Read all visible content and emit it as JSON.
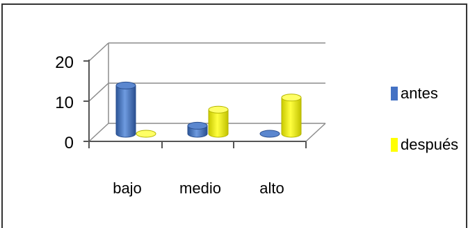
{
  "chart_data": {
    "type": "bar",
    "categories": [
      "bajo",
      "medio",
      "alto"
    ],
    "series": [
      {
        "name": "antes",
        "values": [
          12,
          2,
          0
        ],
        "color": "#4472C4"
      },
      {
        "name": "después",
        "values": [
          0,
          6,
          9
        ],
        "color": "#FFFF00"
      }
    ],
    "yticks": [
      "0",
      "10",
      "20"
    ],
    "ylim": [
      0,
      20
    ],
    "grid": true,
    "legend": "right",
    "style": "3d-cylinder"
  }
}
